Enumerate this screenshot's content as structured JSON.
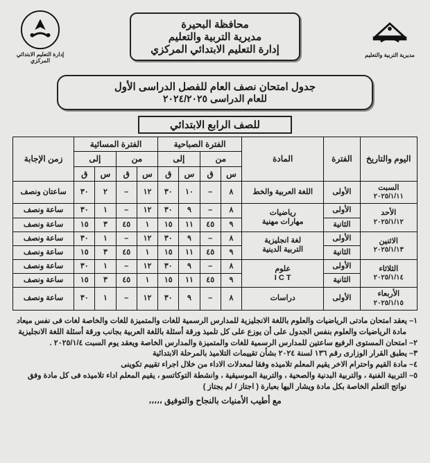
{
  "header": {
    "line1": "محافظة البحيرة",
    "line2": "مديرية التربية والتعليم",
    "line3": "إدارة التعليم الابتدائي المركزي",
    "logo_right_caption": "مديرية التربية والتعليم",
    "logo_left_caption": "إدارة التعليم الابتدائي المركزي"
  },
  "title": {
    "line1": "جدول امتحان نصف العام للفصل الدراسى الأول",
    "line2": "للعام الدراسى ٢٠٢٤/٢٠٢٥"
  },
  "grade": "للصف الرابع الابتدائي",
  "table": {
    "head": {
      "day": "اليوم والتاريخ",
      "period": "الفترة",
      "subject": "المادة",
      "morning": "الفترة الصباحية",
      "evening": "الفترة المسائية",
      "from": "من",
      "to": "إلى",
      "hour": "س",
      "min": "ق",
      "duration": "زمن الإجابة"
    },
    "periods": {
      "first": "الأولى",
      "second": "الثانية"
    },
    "durations": {
      "2h30": "ساعتان ونصف",
      "1h30": "ساعة ونصف"
    },
    "rows": [
      {
        "day": "السبت",
        "date": "٢٠٢٥/١/١١",
        "slots": [
          {
            "period": "first",
            "subject": "اللغة العربية والخط",
            "m_from_h": "٨",
            "m_from_m": "–",
            "m_to_h": "١٠",
            "m_to_m": "٣٠",
            "e_from_h": "١٢",
            "e_from_m": "–",
            "e_to_h": "٢",
            "e_to_m": "٣٠",
            "dur": "2h30"
          }
        ]
      },
      {
        "day": "الأحد",
        "date": "٢٠٢٥/١/١٢",
        "slots": [
          {
            "period": "first",
            "subject": "رياضيات",
            "m_from_h": "٨",
            "m_from_m": "–",
            "m_to_h": "٩",
            "m_to_m": "٣٠",
            "e_from_h": "١٢",
            "e_from_m": "–",
            "e_to_h": "١",
            "e_to_m": "٣٠",
            "dur": "1h30"
          },
          {
            "period": "second",
            "subject": "مهارات مهنية",
            "m_from_h": "٩",
            "m_from_m": "٤٥",
            "m_to_h": "١١",
            "m_to_m": "١٥",
            "e_from_h": "١",
            "e_from_m": "٤٥",
            "e_to_h": "٣",
            "e_to_m": "١٥",
            "dur": "1h30"
          }
        ]
      },
      {
        "day": "الاثنين",
        "date": "٢٠٢٥/١/١٣",
        "slots": [
          {
            "period": "first",
            "subject": "لغة انجليزية",
            "m_from_h": "٨",
            "m_from_m": "–",
            "m_to_h": "٩",
            "m_to_m": "٣٠",
            "e_from_h": "١٢",
            "e_from_m": "–",
            "e_to_h": "١",
            "e_to_m": "٣٠",
            "dur": "1h30"
          },
          {
            "period": "second",
            "subject": "التربية الدينية",
            "m_from_h": "٩",
            "m_from_m": "٤٥",
            "m_to_h": "١١",
            "m_to_m": "١٥",
            "e_from_h": "١",
            "e_from_m": "٤٥",
            "e_to_h": "٣",
            "e_to_m": "١٥",
            "dur": "1h30"
          }
        ]
      },
      {
        "day": "الثلاثاء",
        "date": "٢٠٢٥/١/١٤",
        "slots": [
          {
            "period": "first",
            "subject": "علوم",
            "m_from_h": "٨",
            "m_from_m": "–",
            "m_to_h": "٩",
            "m_to_m": "٣٠",
            "e_from_h": "١٢",
            "e_from_m": "–",
            "e_to_h": "١",
            "e_to_m": "٣٠",
            "dur": "1h30"
          },
          {
            "period": "second",
            "subject": "I C T",
            "m_from_h": "٩",
            "m_from_m": "٤٥",
            "m_to_h": "١١",
            "m_to_m": "١٥",
            "e_from_h": "١",
            "e_from_m": "٤٥",
            "e_to_h": "٣",
            "e_to_m": "١٥",
            "dur": "1h30"
          }
        ]
      },
      {
        "day": "الأربعاء",
        "date": "٢٠٢٥/١/١٥",
        "slots": [
          {
            "period": "first",
            "subject": "دراسات",
            "m_from_h": "٨",
            "m_from_m": "–",
            "m_to_h": "٩",
            "m_to_m": "٣٠",
            "e_from_h": "١٢",
            "e_from_m": "–",
            "e_to_h": "١",
            "e_to_m": "٣٠",
            "dur": "1h30"
          }
        ]
      }
    ]
  },
  "notes": {
    "n1": "١– يعقد امتحان مادتى الرياضيات والعلوم باللغة الانجليزية للمدارس الرسمية للغات والمتميزة للغات والخاصة لغات فى نفس ميعاد مادة الرياضيات والعلوم بنفس الجدول على أن يوزع على كل تلميذ ورقة أسئلة باللغة العربية بجانب ورقة أسئلة اللغة الانجليزية",
    "n2": "٢– امتحان المستوى الرفيع ساعتين للمدارس الرسمية للغات والمتميزة والمدارس الخاصة ويعقد يوم السبت ٢٠٢٥/١/٤ .",
    "n3": "٣– يطبق القرار الوزارى رقم ١٣٦ لسنة ٢٠٢٤ بشأن تقييمات التلاميذ بالمرحلة الابتدائية",
    "n4": "٤– مادة القيم واحترام الاخر يقيم المعلم تلاميذه وفقا لمعدلات الاداء من خلال اجراء تقييم تكوينى",
    "n5": "٥– التربية الفنية ، والتربية البدنية والصحية ، والتربية الموسيقية ، وانشطة التوكاتسو ، يقيم المعلم اداء تلاميذه فى كل مادة وفق نواتج التعلم الخاصة بكل مادة ويشار اليها بعبارة ( اجتاز / لم يجتاز )"
  },
  "closing": "مع أطيب الأمنيات بالنجاح والتوفيق ،،،،،",
  "style": {
    "bg": "#e8e8e6",
    "fg": "#1a1a1a",
    "border": "#111111"
  }
}
